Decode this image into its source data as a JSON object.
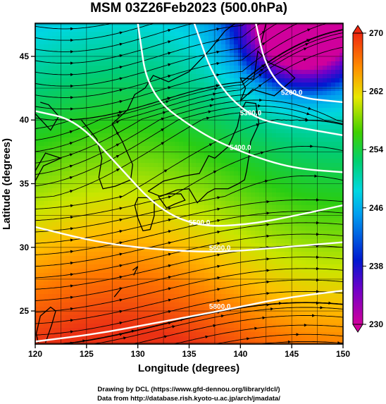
{
  "chart_data": {
    "type": "heatmap",
    "title": "MSM 03Z26Feb2023 (500.0hPa)",
    "xlabel": "Longitude (degrees)",
    "ylabel": "Latitude  (degrees)",
    "xlim": [
      120,
      150
    ],
    "ylim": [
      22.4,
      47.6
    ],
    "xticks": [
      "120",
      "125",
      "130",
      "135",
      "140",
      "145",
      "150"
    ],
    "yticks": [
      "25",
      "30",
      "35",
      "40",
      "45"
    ],
    "colorbar": {
      "min": 230,
      "max": 270,
      "ticks": [
        "230",
        "238",
        "246",
        "254",
        "262",
        "270"
      ],
      "colors": [
        "#d0009c",
        "#0018d0",
        "#00c0f0",
        "#00d070",
        "#e8e800",
        "#ff8000",
        "#f03010"
      ]
    },
    "contours": [
      {
        "label": "5200.0",
        "points": [
          [
            141.5,
            47.6
          ],
          [
            142.5,
            44
          ],
          [
            145,
            41.8
          ],
          [
            150,
            41.4
          ]
        ]
      },
      {
        "label": "5300.0",
        "points": [
          [
            135.5,
            47.6
          ],
          [
            137.5,
            43
          ],
          [
            141,
            40.2
          ],
          [
            145,
            39.5
          ],
          [
            150,
            38.8
          ]
        ]
      },
      {
        "label": "5400.0",
        "points": [
          [
            130,
            47.6
          ],
          [
            131,
            42
          ],
          [
            136,
            39
          ],
          [
            140,
            37.5
          ],
          [
            145,
            36.2
          ],
          [
            150,
            35.9
          ]
        ]
      },
      {
        "label": "5500.0",
        "points": [
          [
            120,
            40.7
          ],
          [
            124,
            40
          ],
          [
            128,
            36.5
          ],
          [
            132,
            33
          ],
          [
            136,
            31.6
          ],
          [
            141,
            31.8
          ],
          [
            146,
            32.6
          ],
          [
            150,
            33.3
          ]
        ]
      },
      {
        "label": "5600.0",
        "points": [
          [
            120,
            31.6
          ],
          [
            126,
            30.4
          ],
          [
            132,
            29.8
          ],
          [
            138,
            29.6
          ],
          [
            144,
            30.0
          ],
          [
            150,
            30.4
          ]
        ]
      },
      {
        "label": "5800.0",
        "points": [
          [
            120,
            22.6
          ],
          [
            126,
            23.2
          ],
          [
            132,
            24.1
          ],
          [
            138,
            25.0
          ],
          [
            144,
            26.0
          ],
          [
            150,
            26.6
          ]
        ]
      }
    ]
  },
  "footer": {
    "line1": "Drawing by DCL (https://www.gfd-dennou.org/library/dcl/)",
    "line2": "Data from http://database.rish.kyoto-u.ac.jp/arch/jmadata/"
  }
}
